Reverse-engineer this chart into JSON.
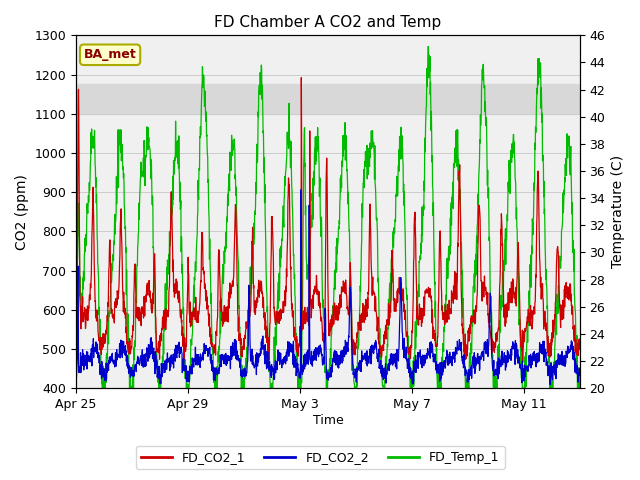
{
  "title": "FD Chamber A CO2 and Temp",
  "xlabel": "Time",
  "ylabel_left": "CO2 (ppm)",
  "ylabel_right": "Temperature (C)",
  "ylim_left": [
    400,
    1300
  ],
  "ylim_right": [
    20,
    46
  ],
  "yticks_left": [
    400,
    500,
    600,
    700,
    800,
    900,
    1000,
    1100,
    1200,
    1300
  ],
  "yticks_right": [
    20,
    22,
    24,
    26,
    28,
    30,
    32,
    34,
    36,
    38,
    40,
    42,
    44,
    46
  ],
  "xtick_positions": [
    0,
    4,
    8,
    12,
    16
  ],
  "xtick_labels": [
    "Apr 25",
    "Apr 29",
    "May 3",
    "May 7",
    "May 11"
  ],
  "color_co2_1": "#cc0000",
  "color_co2_2": "#0000cc",
  "color_temp": "#00bb00",
  "legend_labels": [
    "FD_CO2_1",
    "FD_CO2_2",
    "FD_Temp_1"
  ],
  "annotation_text": "BA_met",
  "annotation_color_bg": "#ffffcc",
  "annotation_color_border": "#aaaa00",
  "annotation_color_text": "#880000",
  "band_co2_lo": 1100,
  "band_co2_hi": 1175,
  "band_color": "#d8d8d8",
  "plot_bg": "#f0f0f0",
  "fig_bg": "#ffffff",
  "grid_color": "#cccccc",
  "xlim": [
    0,
    18
  ],
  "temp_lo": 20,
  "temp_hi": 46,
  "co2_lo": 400,
  "co2_hi": 1300
}
